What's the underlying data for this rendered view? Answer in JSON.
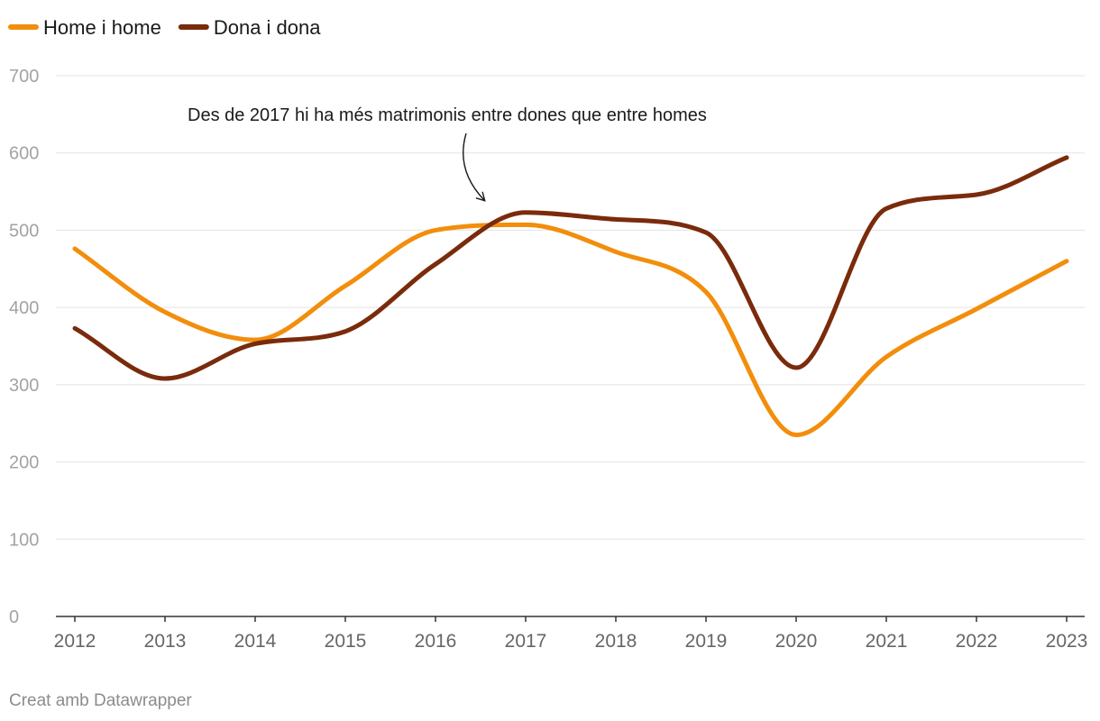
{
  "chart_data": {
    "type": "line",
    "title": "",
    "xlabel": "",
    "ylabel": "",
    "x": [
      "2012",
      "2013",
      "2014",
      "2015",
      "2016",
      "2017",
      "2018",
      "2019",
      "2020",
      "2021",
      "2022",
      "2023"
    ],
    "series": [
      {
        "name": "Home i home",
        "color": "#f28e0c",
        "values": [
          476,
          394,
          358,
          428,
          500,
          507,
          472,
          420,
          235,
          336,
          398,
          460
        ]
      },
      {
        "name": "Dona i dona",
        "color": "#7a2b0b",
        "values": [
          373,
          308,
          353,
          369,
          456,
          523,
          514,
          497,
          322,
          528,
          546,
          594
        ]
      }
    ],
    "ylim": [
      0,
      700
    ],
    "yticks": [
      "0",
      "100",
      "200",
      "300",
      "400",
      "500",
      "600",
      "700"
    ],
    "grid": true,
    "legend_position": "top-left",
    "annotation": {
      "text": "Des de 2017 hi ha més matrimonis entre dones que entre homes"
    }
  },
  "footer": {
    "credit": "Creat amb Datawrapper"
  }
}
